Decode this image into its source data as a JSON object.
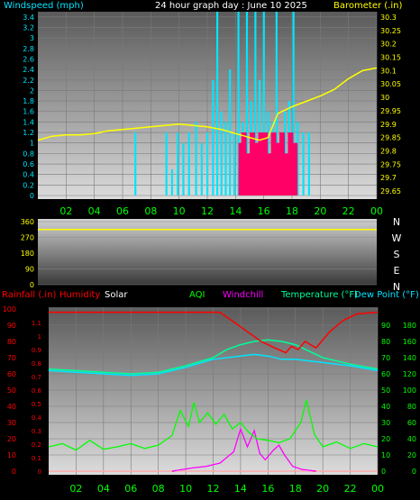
{
  "header": {
    "windspeed_label": "Windspeed (mph)",
    "graph_title": "24 hour graph day : June 10 2025",
    "barometer_label": "Barometer (.in)"
  },
  "lower_header": {
    "rainfall_label": "Rainfall (.in)",
    "humidity_label": "Humidity",
    "solar_label": "Solar",
    "aqi_label": "AQI",
    "windchill_label": "Windchill",
    "temperature_label": "Temperature (°F)",
    "dewpoint_label": "Dew Point (°F)"
  },
  "colors": {
    "windspeed": "#00e5ff",
    "windgust": "#ff0066",
    "barometer": "#ffff00",
    "direction": "#ffff00",
    "rain": "#ff0000",
    "humidity": "#ff0000",
    "solar": "#ffffff",
    "aqi": "#00ff00",
    "windchill": "#ff00ff",
    "temperature": "#00ff99",
    "dewpoint": "#00e5ff"
  },
  "chart_data": [
    {
      "type": "bar",
      "panel": "wind-barometer",
      "x_ticks": [
        "02",
        "04",
        "06",
        "08",
        "10",
        "12",
        "14",
        "16",
        "18",
        "20",
        "22",
        "00"
      ],
      "y_left_ticks": [
        "0",
        "0.2",
        "0.4",
        "0.6",
        "0.8",
        "1",
        "1.2",
        "1.4",
        "1.6",
        "1.8",
        "2",
        "2.2",
        "2.4",
        "2.6",
        "2.8",
        "3",
        "3.2",
        "3.4"
      ],
      "y_left_range": [
        0,
        3.5
      ],
      "y_right_ticks": [
        "29.65",
        "29.7",
        "29.75",
        "29.8",
        "29.85",
        "29.9",
        "29.95",
        "30",
        "30.05",
        "30.1",
        "30.15",
        "30.2",
        "30.25",
        "30.3"
      ],
      "y_right_range": [
        29.62,
        30.32
      ],
      "windspeed_bars": [
        {
          "hour": 6.9,
          "value": 1.2
        },
        {
          "hour": 9.1,
          "value": 1.2
        },
        {
          "hour": 9.5,
          "value": 0.5
        },
        {
          "hour": 9.9,
          "value": 1.2
        },
        {
          "hour": 10.3,
          "value": 1.0
        },
        {
          "hour": 10.7,
          "value": 1.2
        },
        {
          "hour": 11.2,
          "value": 1.4
        },
        {
          "hour": 11.6,
          "value": 1.0
        },
        {
          "hour": 12.0,
          "value": 1.2
        },
        {
          "hour": 12.4,
          "value": 2.2
        },
        {
          "hour": 12.7,
          "value": 3.5
        },
        {
          "hour": 13.0,
          "value": 1.6
        },
        {
          "hour": 13.3,
          "value": 1.4
        },
        {
          "hour": 13.6,
          "value": 2.4
        },
        {
          "hour": 13.9,
          "value": 1.2
        },
        {
          "hour": 14.2,
          "value": 3.5
        },
        {
          "hour": 14.5,
          "value": 1.4
        },
        {
          "hour": 14.8,
          "value": 3.5
        },
        {
          "hour": 15.1,
          "value": 1.8
        },
        {
          "hour": 15.4,
          "value": 3.5
        },
        {
          "hour": 15.7,
          "value": 2.2
        },
        {
          "hour": 16.0,
          "value": 3.5
        },
        {
          "hour": 16.3,
          "value": 1.6
        },
        {
          "hour": 16.6,
          "value": 1.4
        },
        {
          "hour": 16.9,
          "value": 3.5
        },
        {
          "hour": 17.2,
          "value": 1.2
        },
        {
          "hour": 17.5,
          "value": 1.6
        },
        {
          "hour": 17.8,
          "value": 1.8
        },
        {
          "hour": 18.1,
          "value": 3.5
        },
        {
          "hour": 18.4,
          "value": 1.4
        },
        {
          "hour": 18.8,
          "value": 1.2
        },
        {
          "hour": 19.2,
          "value": 1.2
        }
      ],
      "windgust_bars": [
        {
          "hour": 14.4,
          "value": 1.0
        },
        {
          "hour": 14.6,
          "value": 1.2
        },
        {
          "hour": 14.9,
          "value": 0.8
        },
        {
          "hour": 15.2,
          "value": 1.2
        },
        {
          "hour": 15.5,
          "value": 1.0
        },
        {
          "hour": 15.8,
          "value": 1.2
        },
        {
          "hour": 16.1,
          "value": 1.2
        },
        {
          "hour": 16.4,
          "value": 0.8
        },
        {
          "hour": 16.7,
          "value": 1.2
        },
        {
          "hour": 17.0,
          "value": 1.0
        },
        {
          "hour": 17.3,
          "value": 1.2
        },
        {
          "hour": 17.6,
          "value": 0.8
        },
        {
          "hour": 17.9,
          "value": 1.2
        },
        {
          "hour": 18.2,
          "value": 1.0
        }
      ],
      "barometer": [
        {
          "hour": 0,
          "value": 29.84
        },
        {
          "hour": 1,
          "value": 29.855
        },
        {
          "hour": 2,
          "value": 29.86
        },
        {
          "hour": 3,
          "value": 29.86
        },
        {
          "hour": 4,
          "value": 29.865
        },
        {
          "hour": 5,
          "value": 29.875
        },
        {
          "hour": 6,
          "value": 29.88
        },
        {
          "hour": 7,
          "value": 29.885
        },
        {
          "hour": 8,
          "value": 29.89
        },
        {
          "hour": 9,
          "value": 29.895
        },
        {
          "hour": 10,
          "value": 29.9
        },
        {
          "hour": 11,
          "value": 29.895
        },
        {
          "hour": 12,
          "value": 29.89
        },
        {
          "hour": 13,
          "value": 29.88
        },
        {
          "hour": 14,
          "value": 29.865
        },
        {
          "hour": 15,
          "value": 29.85
        },
        {
          "hour": 15.7,
          "value": 29.84
        },
        {
          "hour": 16.3,
          "value": 29.85
        },
        {
          "hour": 17,
          "value": 29.94
        },
        {
          "hour": 18,
          "value": 29.965
        },
        {
          "hour": 19,
          "value": 29.985
        },
        {
          "hour": 20,
          "value": 30.005
        },
        {
          "hour": 21,
          "value": 30.03
        },
        {
          "hour": 22,
          "value": 30.07
        },
        {
          "hour": 23,
          "value": 30.1
        },
        {
          "hour": 24,
          "value": 30.11
        }
      ]
    },
    {
      "type": "line",
      "panel": "wind-direction",
      "x_ticks": [],
      "y_ticks": [
        "0",
        "90",
        "180",
        "270",
        "360"
      ],
      "y_range": [
        0,
        360
      ],
      "compass_labels": [
        "N",
        "W",
        "S",
        "E",
        "N"
      ],
      "direction": [
        {
          "hour": 0,
          "value": 315
        },
        {
          "hour": 24,
          "value": 315
        }
      ]
    },
    {
      "type": "line",
      "panel": "rain-humidity-solar-temperature",
      "x_ticks": [
        "02",
        "04",
        "06",
        "08",
        "10",
        "12",
        "14",
        "16",
        "18",
        "20",
        "22",
        "00"
      ],
      "y_left_humidity_ticks": [
        "0",
        "10",
        "20",
        "30",
        "40",
        "50",
        "60",
        "70",
        "80",
        "90",
        "100"
      ],
      "y_left_humidity_range": [
        0,
        100
      ],
      "y_left_rain_ticks": [
        "0",
        "0.1",
        "0.2",
        "0.3",
        "0.4",
        "0.5",
        "0.6",
        "0.7",
        "0.8",
        "0.9",
        "1",
        "1.1"
      ],
      "y_left_rain_range": [
        0,
        1.2
      ],
      "y_right_temp_ticks": [
        "0",
        "10",
        "20",
        "30",
        "40",
        "50",
        "60",
        "70",
        "80",
        "90"
      ],
      "y_right_temp_range": [
        0,
        100
      ],
      "y_right_solar_ticks": [
        "0",
        "20",
        "40",
        "60",
        "80",
        "100",
        "120",
        "140",
        "160",
        "180"
      ],
      "y_right_solar_range": [
        0,
        200
      ],
      "rain": [
        {
          "hour": 0,
          "value": 0.0
        },
        {
          "hour": 24,
          "value": 0.0
        }
      ],
      "humidity": [
        {
          "hour": 0,
          "value": 98
        },
        {
          "hour": 12.5,
          "value": 98
        },
        {
          "hour": 13.5,
          "value": 92
        },
        {
          "hour": 14.5,
          "value": 86
        },
        {
          "hour": 15.5,
          "value": 80
        },
        {
          "hour": 16.5,
          "value": 76
        },
        {
          "hour": 17.3,
          "value": 73
        },
        {
          "hour": 17.7,
          "value": 77
        },
        {
          "hour": 18.2,
          "value": 75
        },
        {
          "hour": 18.7,
          "value": 80
        },
        {
          "hour": 19.5,
          "value": 76
        },
        {
          "hour": 20.5,
          "value": 86
        },
        {
          "hour": 21.5,
          "value": 93
        },
        {
          "hour": 22.5,
          "value": 97
        },
        {
          "hour": 24,
          "value": 98
        }
      ],
      "temperature": [
        {
          "hour": 0,
          "value": 63
        },
        {
          "hour": 2,
          "value": 62
        },
        {
          "hour": 4,
          "value": 61
        },
        {
          "hour": 6,
          "value": 60
        },
        {
          "hour": 8,
          "value": 61
        },
        {
          "hour": 10,
          "value": 65
        },
        {
          "hour": 12,
          "value": 70
        },
        {
          "hour": 13,
          "value": 75
        },
        {
          "hour": 14,
          "value": 78
        },
        {
          "hour": 15,
          "value": 80
        },
        {
          "hour": 16,
          "value": 81
        },
        {
          "hour": 17,
          "value": 80
        },
        {
          "hour": 18,
          "value": 78
        },
        {
          "hour": 19,
          "value": 74
        },
        {
          "hour": 20,
          "value": 70
        },
        {
          "hour": 22,
          "value": 66
        },
        {
          "hour": 24,
          "value": 63
        }
      ],
      "dew_point": [
        {
          "hour": 0,
          "value": 62
        },
        {
          "hour": 2,
          "value": 61
        },
        {
          "hour": 4,
          "value": 60
        },
        {
          "hour": 6,
          "value": 59
        },
        {
          "hour": 8,
          "value": 60
        },
        {
          "hour": 10,
          "value": 64
        },
        {
          "hour": 12,
          "value": 69
        },
        {
          "hour": 14,
          "value": 71
        },
        {
          "hour": 15,
          "value": 72
        },
        {
          "hour": 16,
          "value": 71
        },
        {
          "hour": 17,
          "value": 69
        },
        {
          "hour": 18,
          "value": 69
        },
        {
          "hour": 19,
          "value": 68
        },
        {
          "hour": 20,
          "value": 67
        },
        {
          "hour": 22,
          "value": 65
        },
        {
          "hour": 24,
          "value": 62
        }
      ],
      "aqi": [
        {
          "hour": 0,
          "value": 30
        },
        {
          "hour": 1,
          "value": 34
        },
        {
          "hour": 2,
          "value": 26
        },
        {
          "hour": 3,
          "value": 38
        },
        {
          "hour": 4,
          "value": 27
        },
        {
          "hour": 5,
          "value": 30
        },
        {
          "hour": 6,
          "value": 34
        },
        {
          "hour": 7,
          "value": 28
        },
        {
          "hour": 8,
          "value": 32
        },
        {
          "hour": 9,
          "value": 44
        },
        {
          "hour": 9.6,
          "value": 75
        },
        {
          "hour": 10.2,
          "value": 55
        },
        {
          "hour": 10.6,
          "value": 85
        },
        {
          "hour": 11,
          "value": 60
        },
        {
          "hour": 11.6,
          "value": 72
        },
        {
          "hour": 12.2,
          "value": 58
        },
        {
          "hour": 12.8,
          "value": 70
        },
        {
          "hour": 13.4,
          "value": 52
        },
        {
          "hour": 14,
          "value": 60
        },
        {
          "hour": 14.6,
          "value": 48
        },
        {
          "hour": 15.2,
          "value": 40
        },
        {
          "hour": 16,
          "value": 38
        },
        {
          "hour": 16.8,
          "value": 35
        },
        {
          "hour": 17.6,
          "value": 40
        },
        {
          "hour": 18.4,
          "value": 60
        },
        {
          "hour": 18.8,
          "value": 88
        },
        {
          "hour": 19.4,
          "value": 45
        },
        {
          "hour": 20,
          "value": 30
        },
        {
          "hour": 21,
          "value": 36
        },
        {
          "hour": 22,
          "value": 28
        },
        {
          "hour": 23,
          "value": 34
        },
        {
          "hour": 24,
          "value": 30
        }
      ],
      "windchill": [
        {
          "hour": 9,
          "value": 0
        },
        {
          "hour": 10.5,
          "value": 4
        },
        {
          "hour": 11.5,
          "value": 6
        },
        {
          "hour": 12.5,
          "value": 10
        },
        {
          "hour": 13.5,
          "value": 24
        },
        {
          "hour": 14,
          "value": 52
        },
        {
          "hour": 14.5,
          "value": 30
        },
        {
          "hour": 15,
          "value": 50
        },
        {
          "hour": 15.4,
          "value": 22
        },
        {
          "hour": 15.8,
          "value": 14
        },
        {
          "hour": 16.4,
          "value": 26
        },
        {
          "hour": 16.8,
          "value": 32
        },
        {
          "hour": 17.2,
          "value": 20
        },
        {
          "hour": 17.8,
          "value": 6
        },
        {
          "hour": 18.5,
          "value": 2
        },
        {
          "hour": 19.5,
          "value": 0
        }
      ],
      "solar": [
        {
          "hour": 0,
          "value": 0
        },
        {
          "hour": 24,
          "value": 0
        }
      ]
    }
  ]
}
